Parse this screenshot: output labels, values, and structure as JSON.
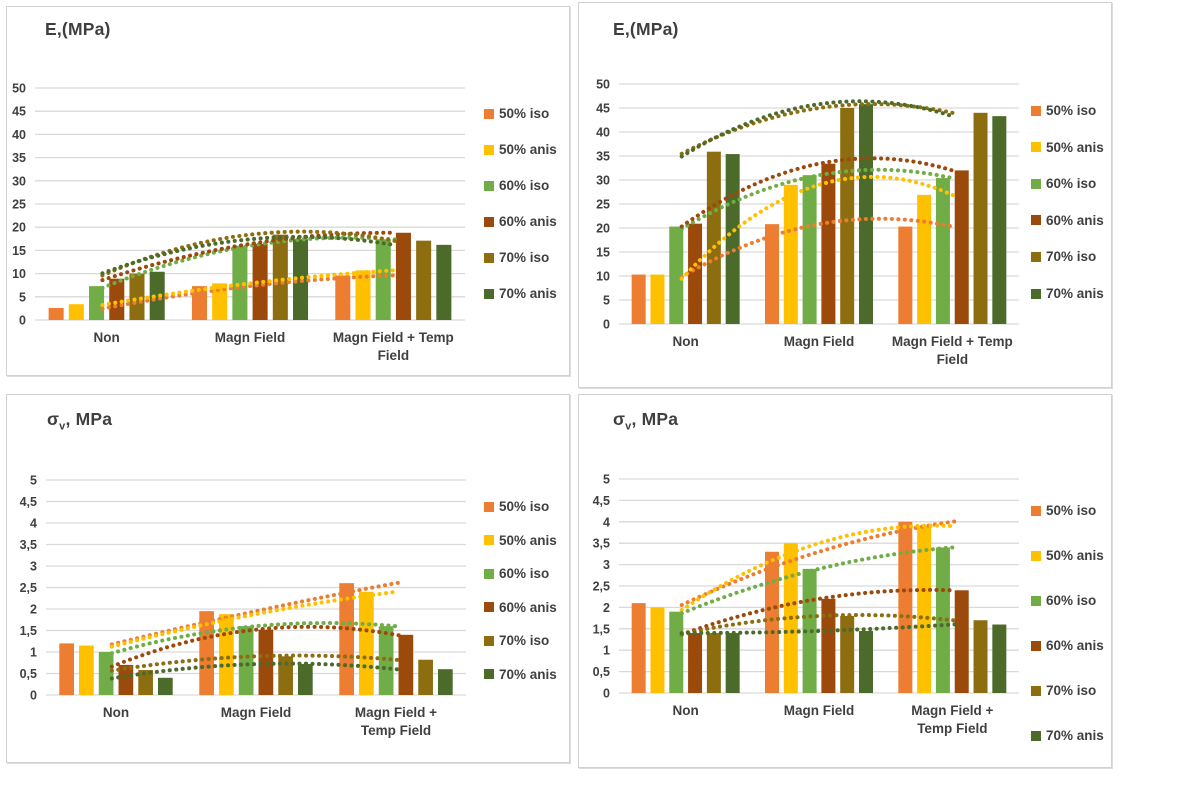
{
  "figure_title": "",
  "legend_entries": [
    "50% iso",
    "50% anis",
    "60% iso",
    "60% anis",
    "70% iso",
    "70% anis"
  ],
  "colors": {
    "orange_50_iso": "#ED7D31",
    "gold_50_anis": "#FFC000",
    "green_60_iso": "#70AD47",
    "brown_60_anis": "#9C4A0B",
    "olive_70_iso": "#8C6E10",
    "darkgreen_70_anis": "#4C6B2B",
    "gridline": "#D9D9D9",
    "text": "#404040",
    "panel_border": "#D2D0D0"
  },
  "chart_data": [
    {
      "type": "bar",
      "title": "E,(MPa)",
      "title_main": "E,(MPa)",
      "title_sub": "",
      "title_rest": "",
      "xlabel": "",
      "ylabel": "E,(MPa)",
      "ylim": [
        0,
        50
      ],
      "ystep": 5,
      "grid": true,
      "legend_position": "right",
      "ytick_labels": [
        "0",
        "5",
        "10",
        "15",
        "20",
        "25",
        "30",
        "35",
        "40",
        "45",
        "50"
      ],
      "categories": [
        "Non",
        "Magn Field",
        "Magn Field + Temp Field"
      ],
      "category_label_lines": [
        [
          "Non"
        ],
        [
          "Magn Field"
        ],
        [
          "Magn Field + Temp",
          "Field"
        ]
      ],
      "series": [
        {
          "name": "50% iso",
          "color": "#ED7D31",
          "values": [
            2.6,
            7.3,
            9.6
          ],
          "trendline": true
        },
        {
          "name": "50% anis",
          "color": "#FFC000",
          "values": [
            3.4,
            7.9,
            10.7
          ],
          "trendline": true
        },
        {
          "name": "60% iso",
          "color": "#70AD47",
          "values": [
            7.3,
            16.0,
            17.4
          ],
          "trendline": true
        },
        {
          "name": "60% anis",
          "color": "#9C4A0B",
          "values": [
            8.9,
            16.4,
            18.8
          ],
          "trendline": true
        },
        {
          "name": "70% iso",
          "color": "#8C6E10",
          "values": [
            10.0,
            18.4,
            17.1
          ],
          "trendline": true
        },
        {
          "name": "70% anis",
          "color": "#4C6B2B",
          "values": [
            10.4,
            17.4,
            16.2
          ],
          "trendline": true
        }
      ]
    },
    {
      "type": "bar",
      "title": "E,(MPa)",
      "title_main": "E,(MPa)",
      "title_sub": "",
      "title_rest": "",
      "xlabel": "",
      "ylabel": "E,(MPa)",
      "ylim": [
        0,
        50
      ],
      "ystep": 5,
      "grid": true,
      "legend_position": "right",
      "ytick_labels": [
        "0",
        "5",
        "10",
        "15",
        "20",
        "25",
        "30",
        "35",
        "40",
        "45",
        "50"
      ],
      "categories": [
        "Non",
        "Magn Field",
        "Magn Field + Temp Field"
      ],
      "category_label_lines": [
        [
          "Non"
        ],
        [
          "Magn Field"
        ],
        [
          "Magn Field + Temp",
          "Field"
        ]
      ],
      "series": [
        {
          "name": "50% iso",
          "color": "#ED7D31",
          "values": [
            10.3,
            20.8,
            20.3
          ],
          "trendline": true
        },
        {
          "name": "50% anis",
          "color": "#FFC000",
          "values": [
            10.3,
            29.0,
            26.9
          ],
          "trendline": true
        },
        {
          "name": "60% iso",
          "color": "#70AD47",
          "values": [
            20.3,
            31.0,
            30.4
          ],
          "trendline": true
        },
        {
          "name": "60% anis",
          "color": "#9C4A0B",
          "values": [
            20.9,
            33.4,
            32.0
          ],
          "trendline": true
        },
        {
          "name": "70% iso",
          "color": "#8C6E10",
          "values": [
            35.9,
            45.0,
            44.0
          ],
          "trendline": true
        },
        {
          "name": "70% anis",
          "color": "#4C6B2B",
          "values": [
            35.4,
            45.8,
            43.3
          ],
          "trendline": true
        }
      ]
    },
    {
      "type": "bar",
      "title": "σv, MPa",
      "title_main": "σ",
      "title_sub": "v",
      "title_rest": ", MPa",
      "xlabel": "",
      "ylabel": "σv, MPa",
      "ylim": [
        0,
        5
      ],
      "ystep": 0.5,
      "grid": true,
      "legend_position": "right",
      "ytick_labels": [
        "0",
        "0,5",
        "1",
        "1,5",
        "2",
        "2,5",
        "3",
        "3,5",
        "4",
        "4,5",
        "5"
      ],
      "categories": [
        "Non",
        "Magn Field",
        "Magn Field + Temp Field"
      ],
      "category_label_lines": [
        [
          "Non"
        ],
        [
          "Magn Field"
        ],
        [
          "Magn Field +",
          "Temp Field"
        ]
      ],
      "series": [
        {
          "name": "50% iso",
          "color": "#ED7D31",
          "values": [
            1.2,
            1.95,
            2.6
          ],
          "trendline": true
        },
        {
          "name": "50% anis",
          "color": "#FFC000",
          "values": [
            1.15,
            1.88,
            2.4
          ],
          "trendline": true
        },
        {
          "name": "60% iso",
          "color": "#70AD47",
          "values": [
            1.0,
            1.6,
            1.6
          ],
          "trendline": true
        },
        {
          "name": "60% anis",
          "color": "#9C4A0B",
          "values": [
            0.7,
            1.52,
            1.4
          ],
          "trendline": true
        },
        {
          "name": "70% iso",
          "color": "#8C6E10",
          "values": [
            0.58,
            0.9,
            0.82
          ],
          "trendline": true
        },
        {
          "name": "70% anis",
          "color": "#4C6B2B",
          "values": [
            0.4,
            0.72,
            0.6
          ],
          "trendline": true
        }
      ]
    },
    {
      "type": "bar",
      "title": "σv, MPa",
      "title_main": "σ",
      "title_sub": "v",
      "title_rest": ", MPa",
      "xlabel": "",
      "ylabel": "σv, MPa",
      "ylim": [
        0,
        5
      ],
      "ystep": 0.5,
      "grid": true,
      "legend_position": "right",
      "ytick_labels": [
        "0",
        "0,5",
        "1",
        "1,5",
        "2",
        "2,5",
        "3",
        "3,5",
        "4",
        "4,5",
        "5"
      ],
      "categories": [
        "Non",
        "Magn Field",
        "Magn Field + Temp Field"
      ],
      "category_label_lines": [
        [
          "Non"
        ],
        [
          "Magn Field"
        ],
        [
          "Magn Field +",
          "Temp Field"
        ]
      ],
      "series": [
        {
          "name": "50% iso",
          "color": "#ED7D31",
          "values": [
            2.1,
            3.3,
            4.0
          ],
          "trendline": true
        },
        {
          "name": "50% anis",
          "color": "#FFC000",
          "values": [
            2.0,
            3.5,
            3.9
          ],
          "trendline": true
        },
        {
          "name": "60% iso",
          "color": "#70AD47",
          "values": [
            1.9,
            2.9,
            3.4
          ],
          "trendline": true
        },
        {
          "name": "60% anis",
          "color": "#9C4A0B",
          "values": [
            1.4,
            2.2,
            2.4
          ],
          "trendline": true
        },
        {
          "name": "70% iso",
          "color": "#8C6E10",
          "values": [
            1.4,
            1.8,
            1.7
          ],
          "trendline": true
        },
        {
          "name": "70% anis",
          "color": "#4C6B2B",
          "values": [
            1.4,
            1.45,
            1.6
          ],
          "trendline": true
        }
      ]
    }
  ]
}
